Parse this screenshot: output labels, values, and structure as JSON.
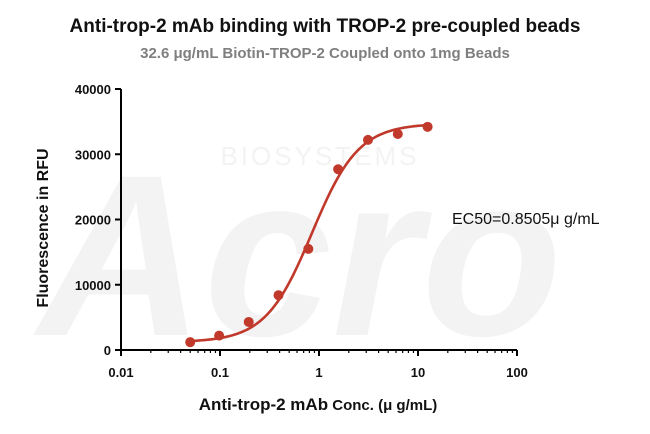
{
  "chart_data": {
    "type": "scatter",
    "title": "Anti-trop-2 mAb binding with TROP-2 pre-coupled beads",
    "subtitle": "32.6 μg/mL Biotin-TROP-2 Coupled onto 1mg Beads",
    "ylabel": "Fluorescence in RFU",
    "xlabel_main": "Anti-trop-2 mAb",
    "xlabel_unit": " Conc. (μ g/mL)",
    "x_scale": "log",
    "xlim": [
      0.01,
      100
    ],
    "ylim": [
      0,
      40000
    ],
    "x_ticks": [
      0.01,
      0.1,
      1,
      10,
      100
    ],
    "x_tick_labels": [
      "0.01",
      "0.1",
      "1",
      "10",
      "100"
    ],
    "y_ticks": [
      0,
      10000,
      20000,
      30000,
      40000
    ],
    "y_tick_labels": [
      "0",
      "10000",
      "20000",
      "30000",
      "40000"
    ],
    "grid": false,
    "series": [
      {
        "color": "#c0392b",
        "x": [
          0.05,
          0.098,
          0.195,
          0.39,
          0.78,
          1.56,
          3.125,
          6.25,
          12.5
        ],
        "y": [
          1200,
          2200,
          4300,
          8400,
          15500,
          27700,
          32200,
          33100,
          34200
        ]
      }
    ],
    "fit": {
      "bottom": 1200,
      "top": 34700,
      "ec50": 0.8505,
      "hill": 1.85
    },
    "annotation": "EC50=0.8505μ g/mL",
    "watermark": {
      "main": "Acro",
      "sub": "BIOSYSTEMS"
    }
  }
}
